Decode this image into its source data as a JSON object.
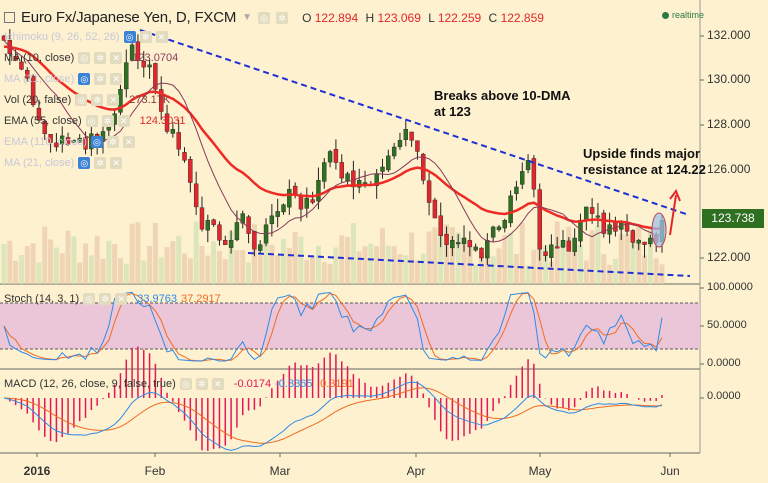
{
  "header": {
    "symbol_title": "Euro Fx/Japanese Yen, D, FXCM",
    "ohlc": [
      {
        "key": "O",
        "value": "122.894"
      },
      {
        "key": "H",
        "value": "123.069"
      },
      {
        "key": "L",
        "value": "122.259"
      },
      {
        "key": "C",
        "value": "122.859"
      }
    ],
    "realtime_label": "realtime"
  },
  "legends": [
    {
      "label": "Ichimoku (9, 26, 52, 26)",
      "faded": true,
      "value": ""
    },
    {
      "label": "MA (10, close)",
      "faded": false,
      "value": "123.0704"
    },
    {
      "label": "MA (21, close)",
      "faded": true,
      "value": ""
    },
    {
      "label": "Vol (20, false)",
      "faded": false,
      "value": "273.17K"
    },
    {
      "label": "EMA (55, close)",
      "faded": false,
      "value": "124.3031"
    },
    {
      "label": "EMA (110, close)",
      "faded": true,
      "value": ""
    },
    {
      "label": "MA (21, close)",
      "faded": true,
      "value": ""
    }
  ],
  "price_axis": {
    "ticks": [
      "132.000",
      "130.000",
      "128.000",
      "126.000",
      "122.000"
    ],
    "current_price": "123.738"
  },
  "annotations": {
    "breaks": [
      "Breaks above 10-DMA",
      "at 123"
    ],
    "upside": [
      "Upside finds major",
      "resistance at 124.22"
    ]
  },
  "stoch": {
    "label": "Stoch (14, 3, 1)",
    "k_value": "33.9763",
    "d_value": "37.2917",
    "ticks": [
      "100.0000",
      "50.0000",
      "0.0000"
    ]
  },
  "macd": {
    "label": "MACD (12, 26, close, 9, false, true)",
    "hist_value": "-0.0174",
    "macd_value": "-0.3365",
    "signal_value": "-0.3191",
    "ticks": [
      "0.0000"
    ]
  },
  "time_axis": {
    "labels": [
      {
        "text": "2016",
        "bold": true
      },
      {
        "text": "Feb",
        "bold": false
      },
      {
        "text": "Mar",
        "bold": false
      },
      {
        "text": "Apr",
        "bold": false
      },
      {
        "text": "May",
        "bold": false
      },
      {
        "text": "Jun",
        "bold": false
      }
    ]
  },
  "colors": {
    "background": "#fdf1cf",
    "up_candle": "#2f6f22",
    "down_candle": "#e3262b",
    "ema55": "#ee2a24",
    "ma10": "#8a3a5a",
    "trendline": "#1f2fd6",
    "stoch_k": "#2f8ae6",
    "stoch_d": "#f26a22",
    "stoch_band": "#ebc6d8",
    "macd_hist": "#e5175a"
  },
  "chart_data": {
    "type": "candlestick",
    "price_range": [
      121,
      133
    ],
    "closes": [
      131.8,
      131.2,
      130.9,
      130.5,
      130.1,
      128.9,
      128.2,
      127.6,
      127.2,
      127.0,
      127.5,
      127.1,
      127.3,
      127.4,
      126.9,
      127.6,
      127.2,
      127.7,
      127.9,
      128.5,
      129.6,
      130.8,
      131.6,
      130.9,
      130.6,
      130.7,
      129.6,
      128.6,
      127.7,
      127.8,
      126.9,
      126.4,
      125.4,
      124.3,
      123.3,
      123.7,
      123.5,
      122.8,
      122.6,
      122.8,
      123.6,
      124.0,
      123.1,
      122.4,
      122.6,
      123.5,
      123.9,
      124.1,
      124.4,
      125.1,
      124.9,
      124.2,
      124.7,
      124.5,
      125.5,
      126.3,
      126.8,
      126.3,
      125.6,
      125.8,
      125.2,
      125.5,
      125.4,
      125.3,
      125.8,
      126.1,
      126.6,
      127.0,
      127.3,
      127.8,
      127.3,
      126.8,
      125.5,
      124.5,
      123.8,
      123.0,
      122.6,
      122.8,
      122.7,
      122.9,
      122.5,
      122.5,
      122.0,
      122.8,
      123.4,
      123.4,
      123.7,
      124.8,
      125.2,
      125.9,
      126.4,
      125.1,
      122.4,
      122.1,
      122.6,
      122.5,
      122.8,
      122.3,
      122.9,
      123.7,
      124.3,
      124.0,
      123.9,
      123.1,
      123.5,
      123.2,
      123.6,
      123.2,
      122.7,
      122.8,
      122.6,
      122.9,
      122.7,
      123.7
    ],
    "ema55_note": "Red EMA (55) line",
    "ma10_note": "Thin MA (10) line"
  }
}
